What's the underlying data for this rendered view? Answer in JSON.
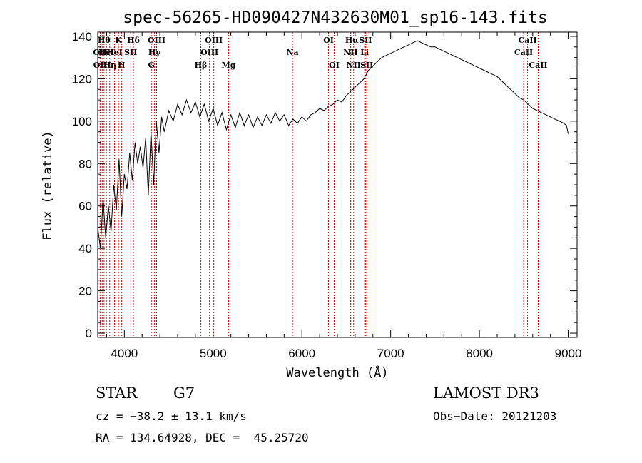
{
  "chart_data": {
    "type": "line",
    "title": "spec-56265-HD090427N432630M01_sp16-143.fits",
    "xlabel": "Wavelength (Å)",
    "ylabel": "Flux (relative)",
    "xlim": [
      3700,
      9100
    ],
    "ylim": [
      -2,
      142
    ],
    "xticks": [
      "4000",
      "5000",
      "6000",
      "7000",
      "8000",
      "9000"
    ],
    "yticks": [
      "0",
      "20",
      "40",
      "60",
      "80",
      "100",
      "120",
      "140"
    ],
    "grid": false,
    "line_color": "#000000",
    "marker_color": "#cc0000",
    "series": [
      {
        "x": [
          3700,
          3730,
          3760,
          3790,
          3820,
          3850,
          3880,
          3910,
          3940,
          3970,
          4000,
          4030,
          4060,
          4090,
          4120,
          4150,
          4180,
          4210,
          4240,
          4270,
          4300,
          4330,
          4360,
          4390,
          4420,
          4450,
          4500,
          4550,
          4600,
          4650,
          4700,
          4750,
          4800,
          4850,
          4900,
          4950,
          5000,
          5050,
          5100,
          5150,
          5200,
          5250,
          5300,
          5350,
          5400,
          5450,
          5500,
          5550,
          5600,
          5650,
          5700,
          5750,
          5800,
          5850,
          5900,
          5950,
          6000,
          6050,
          6100,
          6150,
          6200,
          6250,
          6300,
          6350,
          6400,
          6450,
          6500,
          6550,
          6600,
          6650,
          6700,
          6750,
          6800,
          6850,
          6900,
          6950,
          7000,
          7050,
          7100,
          7150,
          7200,
          7250,
          7300,
          7350,
          7400,
          7450,
          7500,
          7550,
          7600,
          7650,
          7700,
          7750,
          7800,
          7850,
          7900,
          7950,
          8000,
          8050,
          8100,
          8150,
          8200,
          8250,
          8300,
          8350,
          8400,
          8450,
          8500,
          8550,
          8600,
          8650,
          8700,
          8750,
          8800,
          8850,
          8900,
          8950,
          8980,
          9000
        ],
        "y": [
          50,
          40,
          63,
          45,
          60,
          48,
          70,
          58,
          82,
          55,
          75,
          68,
          85,
          72,
          90,
          80,
          88,
          78,
          92,
          65,
          95,
          70,
          100,
          85,
          102,
          95,
          105,
          100,
          108,
          103,
          110,
          104,
          109,
          102,
          108,
          100,
          106,
          98,
          104,
          96,
          103,
          97,
          104,
          98,
          103,
          97,
          102,
          98,
          103,
          99,
          104,
          100,
          103,
          98,
          101,
          99,
          102,
          100,
          103,
          104,
          106,
          105,
          107,
          108,
          110,
          109,
          112,
          114,
          116,
          118,
          120,
          124,
          126,
          128,
          130,
          131,
          132,
          133,
          134,
          135,
          136,
          137,
          138,
          137,
          136,
          135,
          135,
          134,
          133,
          132,
          131,
          130,
          129,
          128,
          127,
          126,
          125,
          124,
          123,
          122,
          121,
          119,
          117,
          115,
          113,
          111,
          110,
          108,
          106,
          105,
          104,
          103,
          102,
          101,
          100,
          99,
          98,
          94
        ]
      }
    ],
    "line_markers": [
      {
        "w": 3727,
        "label": "OII",
        "row": 1
      },
      {
        "w": 3750,
        "label": "OIII",
        "row": 2
      },
      {
        "w": 3771,
        "label": "Hθ",
        "row": 0
      },
      {
        "w": 3798,
        "label": "HeI",
        "row": 1
      },
      {
        "w": 3835,
        "label": "Hη",
        "row": 2
      },
      {
        "w": 3889,
        "label": "HeI",
        "row": 1
      },
      {
        "w": 3934,
        "label": "K",
        "row": 0
      },
      {
        "w": 3968,
        "label": "H",
        "row": 2
      },
      {
        "w": 4072,
        "label": "SII",
        "row": 1
      },
      {
        "w": 4102,
        "label": "Hδ",
        "row": 0
      },
      {
        "w": 4304,
        "label": "G",
        "row": 2
      },
      {
        "w": 4340,
        "label": "Hγ",
        "row": 1
      },
      {
        "w": 4363,
        "label": "OIII",
        "row": 0
      },
      {
        "w": 4861,
        "label": "Hβ",
        "row": 2
      },
      {
        "w": 4959,
        "label": "OIII",
        "row": 1
      },
      {
        "w": 5007,
        "label": "OIII",
        "row": 0
      },
      {
        "w": 5175,
        "label": "Mg",
        "row": 2
      },
      {
        "w": 5894,
        "label": "Na",
        "row": 1
      },
      {
        "w": 6300,
        "label": "OI",
        "row": 0
      },
      {
        "w": 6364,
        "label": "OI",
        "row": 2
      },
      {
        "w": 6548,
        "label": "NII",
        "row": 1
      },
      {
        "w": 6563,
        "label": "Hα",
        "row": 0
      },
      {
        "w": 6583,
        "label": "NII",
        "row": 2
      },
      {
        "w": 6707,
        "label": "Li",
        "row": 1
      },
      {
        "w": 6716,
        "label": "SII",
        "row": 0
      },
      {
        "w": 6731,
        "label": "SII",
        "row": 2
      },
      {
        "w": 8498,
        "label": "CaII",
        "row": 1
      },
      {
        "w": 8542,
        "label": "CaII",
        "row": 0
      },
      {
        "w": 8662,
        "label": "CaII",
        "row": 2
      }
    ]
  },
  "footer": {
    "class_label": "STAR",
    "subclass": "G7",
    "survey": "LAMOST DR3",
    "cz": "cz = −38.2 ± 13.1 km/s",
    "obs_date": "Obs−Date: 20121203",
    "radec": "RA = 134.64928, DEC =  45.25720"
  }
}
